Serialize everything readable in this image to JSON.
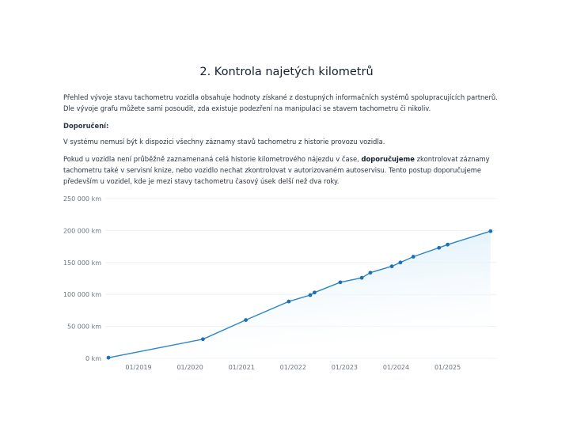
{
  "section": {
    "title": "2. Kontrola najetých kilometrů",
    "intro": "Přehled vývoje stavu tachometru vozidla obsahuje hodnoty získané z dostupných informačních systémů spolupracujících partnerů. Dle vývoje grafu můžete sami posoudit, zda existuje podezření na manipulaci se stavem tachometru či nikoliv.",
    "recommendation_heading": "Doporučení:",
    "note": "V systému nemusí být k dispozici všechny záznamy stavů tachometru z historie provozu vozidla.",
    "advice_before": "Pokud u vozidla není průběžně zaznamenaná celá historie kilometrového nájezdu v čase, ",
    "advice_bold": "doporučujeme",
    "advice_after": " zkontrolovat záznamy tachometru také v servisní knize, nebo vozidlo nechat zkontrolovat v autorizovaném autoservisu. Tento postup doporučujeme především u vozidel, kde je mezi stavy tachometru časový úsek delší než dva roky."
  },
  "chart_data": {
    "type": "area",
    "title": "",
    "xlabel": "",
    "ylabel": "",
    "ylim": [
      0,
      250000
    ],
    "xlim": [
      "05/2018",
      "01/2026"
    ],
    "grid": true,
    "y_ticks": [
      "0 km",
      "50 000 km",
      "100 000 km",
      "150 000 km",
      "200 000 km",
      "250 000 km"
    ],
    "y_tick_values": [
      0,
      50000,
      100000,
      150000,
      200000,
      250000
    ],
    "x_ticks": [
      "01/2019",
      "01/2020",
      "01/2021",
      "01/2022",
      "01/2023",
      "01/2024",
      "01/2025"
    ],
    "line_color": "#2a86c8",
    "point_color": "#1f6fb5",
    "fill_color": "#d6ecf8",
    "points": [
      {
        "x": "06/2018",
        "y": 1000
      },
      {
        "x": "04/2020",
        "y": 30000
      },
      {
        "x": "02/2021",
        "y": 60000
      },
      {
        "x": "12/2021",
        "y": 89000
      },
      {
        "x": "05/2022",
        "y": 99000
      },
      {
        "x": "06/2022",
        "y": 103000
      },
      {
        "x": "12/2022",
        "y": 119000
      },
      {
        "x": "05/2023",
        "y": 126000
      },
      {
        "x": "07/2023",
        "y": 134000
      },
      {
        "x": "12/2023",
        "y": 144000
      },
      {
        "x": "02/2024",
        "y": 150000
      },
      {
        "x": "05/2024",
        "y": 159000
      },
      {
        "x": "11/2024",
        "y": 173000
      },
      {
        "x": "01/2025",
        "y": 178000
      },
      {
        "x": "11/2025",
        "y": 199000
      }
    ]
  }
}
